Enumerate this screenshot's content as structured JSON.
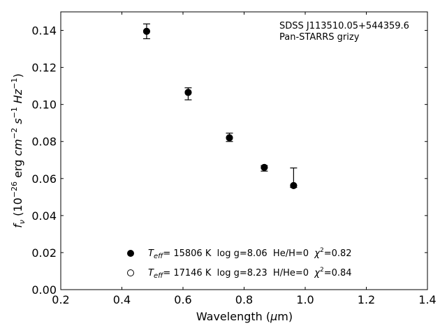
{
  "chart_data": {
    "type": "scatter",
    "xlabel": "Wavelength (μm)",
    "ylabel": "f_ν (10^-26 erg cm^-2 s^-1 Hz^-1)",
    "xlim": [
      0.2,
      1.4
    ],
    "ylim": [
      0.0,
      0.15
    ],
    "x_ticks": [
      "0.2",
      "0.4",
      "0.6",
      "0.8",
      "1.0",
      "1.2",
      "1.4"
    ],
    "y_ticks": [
      "0.00",
      "0.02",
      "0.04",
      "0.06",
      "0.08",
      "0.10",
      "0.12",
      "0.14"
    ],
    "annotations": [
      "SDSS J113510.05+544359.6",
      "Pan-STARRS grizy"
    ],
    "series": [
      {
        "name": "Teff= 15806 K  log g=8.06  He/H=0  χ²=0.82",
        "marker": "filled-circle",
        "x": [
          0.481,
          0.617,
          0.752,
          0.866,
          0.962
        ],
        "values": [
          0.1395,
          0.1065,
          0.082,
          0.066,
          0.0562
        ],
        "error_low": [
          0.004,
          0.004,
          0.002,
          0.002,
          0.001
        ],
        "error_high": [
          0.004,
          0.0025,
          0.0025,
          0.001,
          0.0095
        ]
      },
      {
        "name": "Teff= 17146 K  log g=8.23  H/He=0  χ²=0.84",
        "marker": "open-circle",
        "x": [
          0.481,
          0.617,
          0.752,
          0.866,
          0.962
        ],
        "values": [
          0.1395,
          0.1065,
          0.082,
          0.066,
          0.0562
        ]
      }
    ],
    "legend": [
      {
        "label_pre": "T",
        "label_sub": "eff",
        "label_post": "= 15806 K  log g=8.06  He/H=0  ",
        "chi": "χ",
        "chi_sup": "2",
        "chi_post": "=0.82"
      },
      {
        "label_pre": "T",
        "label_sub": "eff",
        "label_post": "= 17146 K  log g=8.23  H/He=0  ",
        "chi": "χ",
        "chi_sup": "2",
        "chi_post": "=0.84"
      }
    ],
    "legend_position": "lower-center",
    "grid": false,
    "marker_color": "#000000"
  }
}
